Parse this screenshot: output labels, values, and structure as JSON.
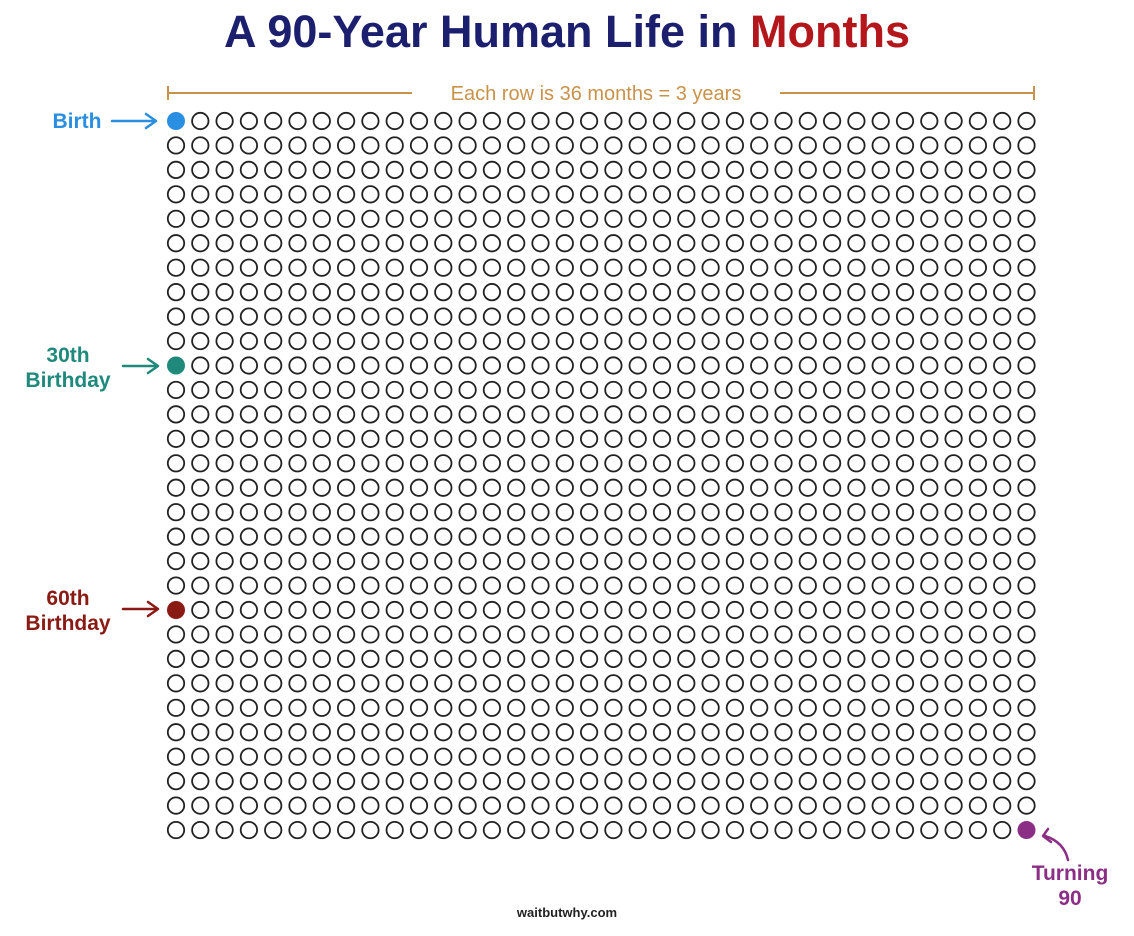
{
  "title": {
    "main": "A 90-Year Human Life in",
    "accent": "Months",
    "main_color": "#1b1f6e",
    "accent_color": "#b3161b"
  },
  "grid": {
    "columns": 36,
    "rows": 30,
    "row_span_label": "Each row is 36 months = 3 years",
    "row_span_color": "#c9924a",
    "empty_stroke_color": "#222222"
  },
  "milestones": [
    {
      "id": "birth",
      "label": "Birth",
      "month_index": 0,
      "color": "#2a8fe0"
    },
    {
      "id": "thirtieth",
      "label": "30th Birthday",
      "label_lines": [
        "30th",
        "Birthday"
      ],
      "month_index": 360,
      "color": "#1f8a7c"
    },
    {
      "id": "sixtieth",
      "label": "60th Birthday",
      "label_lines": [
        "60th",
        "Birthday"
      ],
      "month_index": 720,
      "color": "#8a1a14"
    },
    {
      "id": "ninety",
      "label": "Turning 90",
      "label_lines": [
        "Turning",
        "90"
      ],
      "month_index": 1079,
      "color": "#8b2f86"
    }
  ],
  "footer": "waitbutwhy.com"
}
